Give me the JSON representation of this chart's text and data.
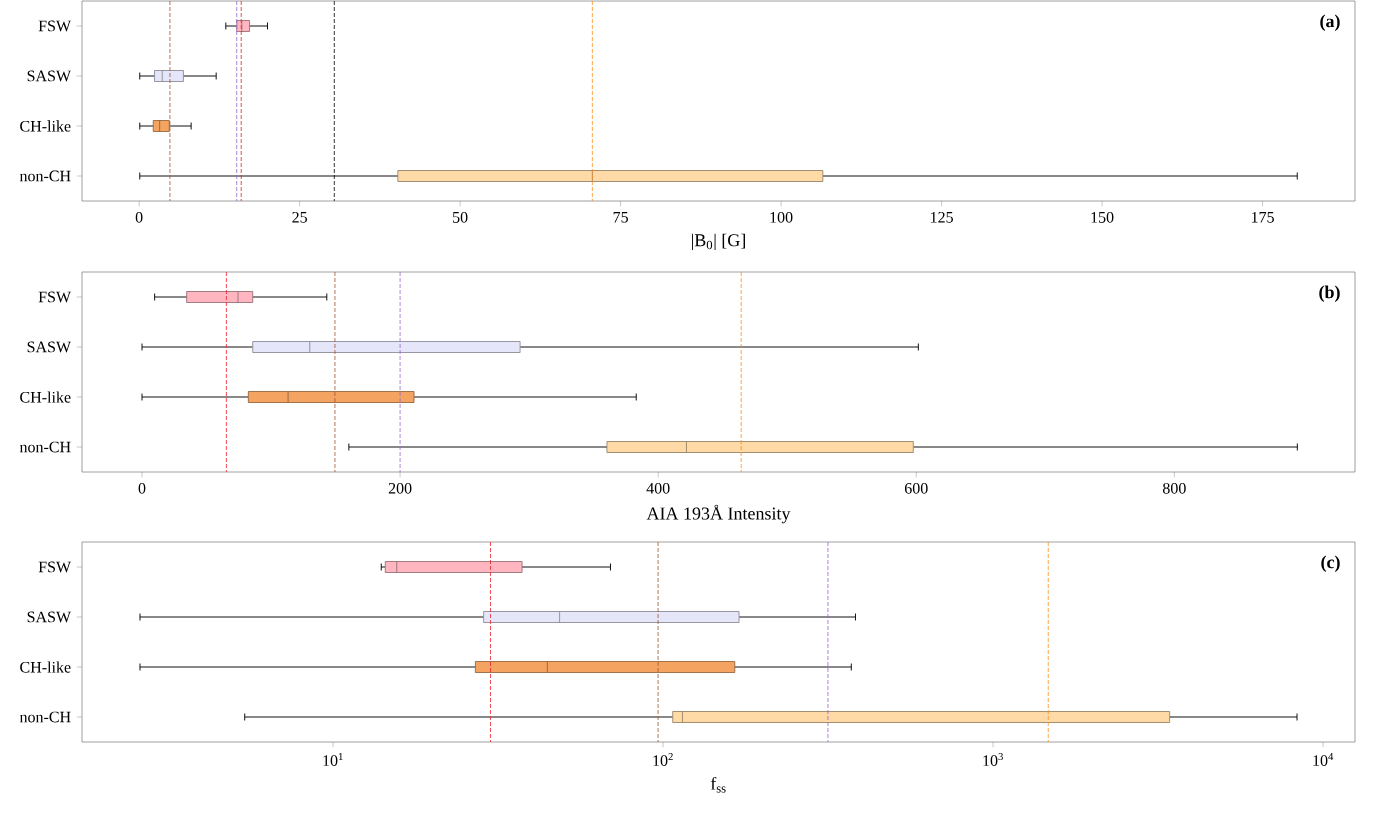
{
  "chart_data": [
    {
      "type": "box",
      "orientation": "horizontal",
      "categories": [
        "FSW",
        "SASW",
        "CH-like",
        "non-CH"
      ],
      "boxes": [
        {
          "low": 13.5,
          "q1": 15.2,
          "median": 16.0,
          "q3": 17.2,
          "high": 20.0
        },
        {
          "low": 0.1,
          "q1": 2.4,
          "median": 3.6,
          "q3": 6.9,
          "high": 12.0
        },
        {
          "low": 0.1,
          "q1": 2.2,
          "median": 3.2,
          "q3": 4.7,
          "high": 8.1
        },
        {
          "low": 0.1,
          "q1": 40.3,
          "median": 70.6,
          "q3": 106.5,
          "high": 180.4
        }
      ],
      "colors": [
        "#ffb6c1",
        "#e6e6fa",
        "#f4a460",
        "#ffdaa6"
      ],
      "xlim": [
        -8.9,
        189.4
      ],
      "xticks": [
        0,
        25,
        50,
        75,
        100,
        125,
        150,
        175
      ],
      "xlabel": "|B$_{0}$| [G]",
      "ref_lines": [
        {
          "axis": "x",
          "value": 4.8,
          "color": "#a0522d",
          "line_style": "dashed"
        },
        {
          "axis": "x",
          "value": 15.2,
          "color": "#9966cc",
          "line_style": "dashed"
        },
        {
          "axis": "x",
          "value": 15.9,
          "color": "#e8202a",
          "line_style": "dashed"
        },
        {
          "axis": "x",
          "value": 30.4,
          "color": "#000000",
          "line_style": "dashed"
        },
        {
          "axis": "x",
          "value": 70.6,
          "color": "#ff8c1a",
          "line_style": "dashed"
        }
      ],
      "annotations": [
        "(a)"
      ]
    },
    {
      "type": "box",
      "orientation": "horizontal",
      "categories": [
        "FSW",
        "SASW",
        "CH-like",
        "non-CH"
      ],
      "boxes": [
        {
          "low": 9.8,
          "q1": 34.6,
          "median": 74.4,
          "q3": 85.8,
          "high": 143.2
        },
        {
          "low": 0,
          "q1": 85.8,
          "median": 130,
          "q3": 293,
          "high": 601.6
        },
        {
          "low": 0,
          "q1": 82.4,
          "median": 113.2,
          "q3": 210.8,
          "high": 383
        },
        {
          "low": 160.3,
          "q1": 360.3,
          "median": 421.9,
          "q3": 597.7,
          "high": 895.3
        }
      ],
      "colors": [
        "#ffb6c1",
        "#e6e6fa",
        "#f4a460",
        "#ffdaa6"
      ],
      "xlim": [
        -46.5,
        940
      ],
      "xticks": [
        0,
        200,
        400,
        600,
        800
      ],
      "xlabel": "AIA 193Å Intensity",
      "ref_lines": [
        {
          "axis": "x",
          "value": 65.4,
          "color": "#e8202a",
          "line_style": "dashed"
        },
        {
          "axis": "x",
          "value": 149.5,
          "color": "#a0522d",
          "line_style": "dashed"
        },
        {
          "axis": "x",
          "value": 200,
          "color": "#9966cc",
          "line_style": "dashed"
        },
        {
          "axis": "x",
          "value": 464.3,
          "color": "#ff8c1a",
          "line_style": "dashed"
        }
      ],
      "annotations": [
        "(b)"
      ]
    },
    {
      "type": "box",
      "orientation": "horizontal",
      "log": "x",
      "categories": [
        "FSW",
        "SASW",
        "CH-like",
        "non-CH"
      ],
      "boxes": [
        {
          "low": 14.0,
          "q1": 14.4,
          "median": 15.6,
          "q3": 37.4,
          "high": 69.3
        },
        {
          "low": 2.6,
          "q1": 28.6,
          "median": 48.6,
          "q3": 170,
          "high": 383
        },
        {
          "low": 2.6,
          "q1": 27.0,
          "median": 44.6,
          "q3": 165,
          "high": 372
        },
        {
          "low": 5.4,
          "q1": 107,
          "median": 114.5,
          "q3": 3430,
          "high": 8340
        }
      ],
      "colors": [
        "#ffb6c1",
        "#e6e6fa",
        "#f4a460",
        "#ffdaa6"
      ],
      "xlim": [
        1.735,
        12500
      ],
      "xticks": [
        {
          "value": 10,
          "label": "10$^{1}$"
        },
        {
          "value": 100,
          "label": "10$^{2}$"
        },
        {
          "value": 1000,
          "label": "10$^{3}$"
        },
        {
          "value": 10000,
          "label": "10$^{4}$"
        }
      ],
      "xlabel": "f$_{ss}$",
      "ref_lines": [
        {
          "axis": "x",
          "value": 30,
          "color": "#e8202a",
          "line_style": "dashed"
        },
        {
          "axis": "x",
          "value": 96.6,
          "color": "#a0522d",
          "line_style": "dashed"
        },
        {
          "axis": "x",
          "value": 316,
          "color": "#9966cc",
          "line_style": "dashed"
        },
        {
          "axis": "x",
          "value": 1470,
          "color": "#ff8c1a",
          "line_style": "dashed"
        }
      ],
      "annotations": [
        "(c)"
      ]
    }
  ]
}
